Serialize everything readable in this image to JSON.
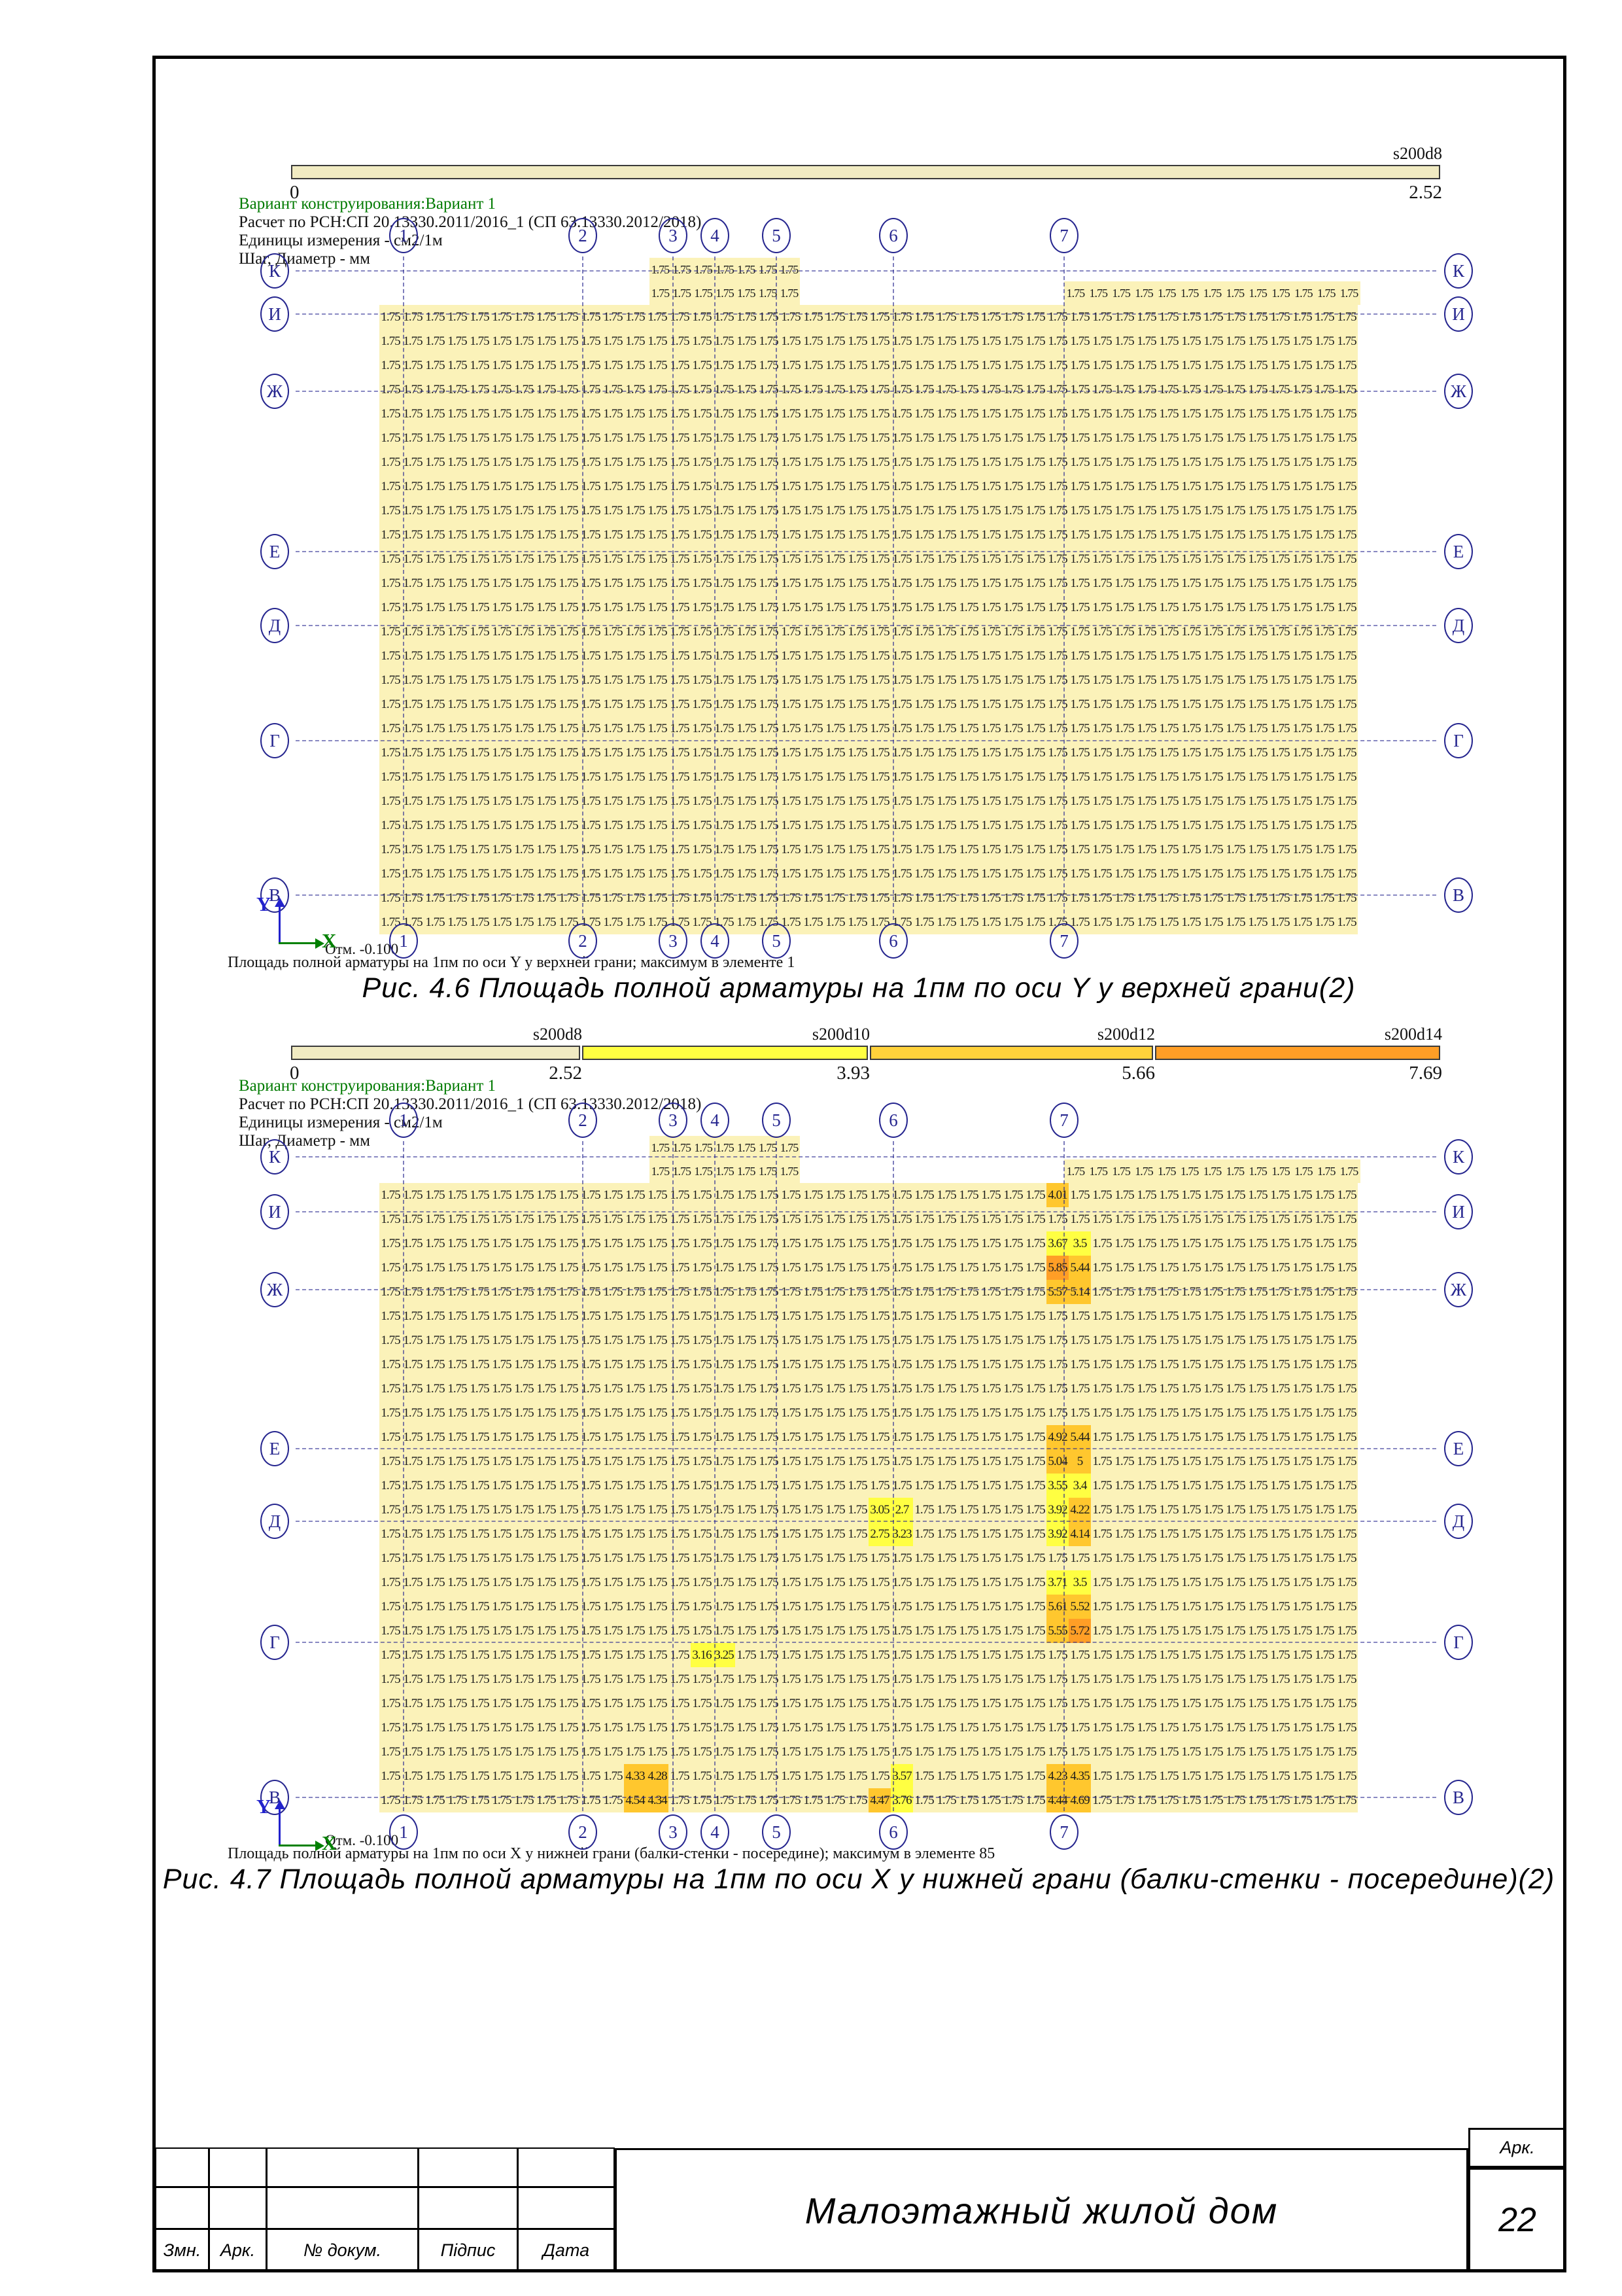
{
  "header_info": {
    "variant": "Вариант конструирования:Вариант 1",
    "calc": "Расчет по РСН:СП 20.13330.2011/2016_1 (СП 63.13330.2012/2018)",
    "units": "Единицы измерения - см2/1м",
    "step": "Шаг, Диаметр - мм"
  },
  "axes": {
    "columns": [
      "1",
      "2",
      "3",
      "4",
      "5",
      "6",
      "7"
    ],
    "rows": [
      "К",
      "И",
      "Ж",
      "Е",
      "Д",
      "Г",
      "В"
    ],
    "x_label": "X",
    "y_label": "Y"
  },
  "figures": [
    {
      "caption": "Рис. 4.6 Площадь полной арматуры на 1пм по оси Y у верхней грани(2)",
      "note": "Площадь полной арматуры на 1пм по оси Y у верхней грани; максимум в элементе 1",
      "elevation": "Отм. -0.100",
      "scale": {
        "start": "0",
        "segments": [
          {
            "name": "s200d8",
            "max": "2.52",
            "color": "#F1EBC2"
          }
        ]
      },
      "grid": {
        "default_value": "1.75",
        "rows": 26,
        "cols": 44,
        "k_left": {
          "rows": 2,
          "cols": 7
        },
        "k_right": {
          "rows": 1,
          "cols": 13
        },
        "highlights": []
      }
    },
    {
      "caption": "Рис. 4.7 Площадь полной арматуры на 1пм по оси X у нижней грани (балки-стенки - посередине)(2)",
      "note": "Площадь полной арматуры на 1пм по оси X у нижней грани (балки-стенки - посередине); максимум в элементе 85",
      "elevation": "Отм. -0.100",
      "scale": {
        "start": "0",
        "segments": [
          {
            "name": "s200d8",
            "max": "2.52",
            "color": "#F1EBC2"
          },
          {
            "name": "s200d10",
            "max": "3.93",
            "color": "#FFFF42"
          },
          {
            "name": "s200d12",
            "max": "5.66",
            "color": "#FFD23B"
          },
          {
            "name": "s200d14",
            "max": "7.69",
            "color": "#FF9E26"
          }
        ]
      },
      "grid": {
        "default_value": "1.75",
        "rows": 26,
        "cols": 44,
        "k_left": {
          "rows": 2,
          "cols": 7
        },
        "k_right": {
          "rows": 1,
          "cols": 13
        },
        "highlights": [
          {
            "r": 0,
            "c": 30,
            "v": "4.01",
            "t": "g"
          },
          {
            "r": 2,
            "c": 30,
            "v": "3.67",
            "t": "y"
          },
          {
            "r": 2,
            "c": 31,
            "v": "3.5",
            "t": "y"
          },
          {
            "r": 3,
            "c": 30,
            "v": "5.85",
            "t": "o"
          },
          {
            "r": 3,
            "c": 31,
            "v": "5.44",
            "t": "g"
          },
          {
            "r": 4,
            "c": 30,
            "v": "5.57",
            "t": "g"
          },
          {
            "r": 4,
            "c": 31,
            "v": "5.14",
            "t": "g"
          },
          {
            "r": 10,
            "c": 30,
            "v": "4.92",
            "t": "g"
          },
          {
            "r": 10,
            "c": 31,
            "v": "5.44",
            "t": "g"
          },
          {
            "r": 11,
            "c": 30,
            "v": "5.04",
            "t": "g"
          },
          {
            "r": 11,
            "c": 31,
            "v": "5",
            "t": "g"
          },
          {
            "r": 12,
            "c": 30,
            "v": "3.55",
            "t": "y"
          },
          {
            "r": 12,
            "c": 31,
            "v": "3.4",
            "t": "y"
          },
          {
            "r": 13,
            "c": 22,
            "v": "3.05",
            "t": "y"
          },
          {
            "r": 13,
            "c": 23,
            "v": "2.7",
            "t": "y"
          },
          {
            "r": 13,
            "c": 30,
            "v": "3.92",
            "t": "y"
          },
          {
            "r": 13,
            "c": 31,
            "v": "4.22",
            "t": "g"
          },
          {
            "r": 14,
            "c": 22,
            "v": "2.75",
            "t": "y"
          },
          {
            "r": 14,
            "c": 23,
            "v": "3.23",
            "t": "y"
          },
          {
            "r": 14,
            "c": 30,
            "v": "3.92",
            "t": "y"
          },
          {
            "r": 14,
            "c": 31,
            "v": "4.14",
            "t": "g"
          },
          {
            "r": 16,
            "c": 30,
            "v": "3.71",
            "t": "y"
          },
          {
            "r": 16,
            "c": 31,
            "v": "3.5",
            "t": "y"
          },
          {
            "r": 17,
            "c": 30,
            "v": "5.61",
            "t": "g"
          },
          {
            "r": 17,
            "c": 31,
            "v": "5.52",
            "t": "g"
          },
          {
            "r": 18,
            "c": 30,
            "v": "5.55",
            "t": "g"
          },
          {
            "r": 18,
            "c": 31,
            "v": "5.72",
            "t": "o"
          },
          {
            "r": 19,
            "c": 14,
            "v": "3.16",
            "t": "y"
          },
          {
            "r": 19,
            "c": 15,
            "v": "3.25",
            "t": "y"
          },
          {
            "r": 24,
            "c": 11,
            "v": "4.33",
            "t": "g"
          },
          {
            "r": 24,
            "c": 12,
            "v": "4.28",
            "t": "g"
          },
          {
            "r": 24,
            "c": 23,
            "v": "3.57",
            "t": "y"
          },
          {
            "r": 24,
            "c": 30,
            "v": "4.23",
            "t": "g"
          },
          {
            "r": 24,
            "c": 31,
            "v": "4.35",
            "t": "g"
          },
          {
            "r": 25,
            "c": 11,
            "v": "4.54",
            "t": "g"
          },
          {
            "r": 25,
            "c": 12,
            "v": "4.34",
            "t": "g"
          },
          {
            "r": 25,
            "c": 22,
            "v": "4.47",
            "t": "g"
          },
          {
            "r": 25,
            "c": 23,
            "v": "3.76",
            "t": "y"
          },
          {
            "r": 25,
            "c": 30,
            "v": "4.44",
            "t": "g"
          },
          {
            "r": 25,
            "c": 31,
            "v": "4.69",
            "t": "g"
          }
        ]
      }
    }
  ],
  "title_block": {
    "columns": [
      "Змн.",
      "Арк.",
      "№ докум.",
      "Підпис",
      "Дата"
    ],
    "project": "Малоэтажный жилой дом",
    "sheet_label": "Арк.",
    "sheet_number": "22"
  },
  "colors": {
    "field": "#FBF2B9",
    "yellow": "#FFFF42",
    "gold": "#FFC72E",
    "orange": "#FF9E26",
    "axis_line": "#26268F",
    "value_text": "#1B1B1B",
    "green_text": "#007A00",
    "x_axis": "#008000",
    "y_axis": "#2222CC"
  }
}
